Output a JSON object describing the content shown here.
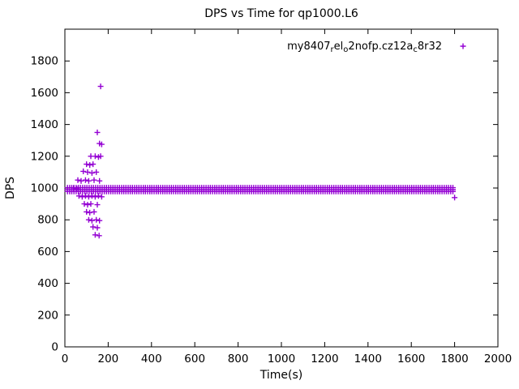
{
  "window": {
    "title": "DPS vs Time for qp1000.L6"
  },
  "chart_data": {
    "type": "scatter",
    "title": "DPS vs Time for qp1000.L6",
    "xlabel": "Time(s)",
    "ylabel": "DPS",
    "xlim": [
      0,
      2000
    ],
    "ylim": [
      0,
      2000
    ],
    "xticks": [
      0,
      200,
      400,
      600,
      800,
      1000,
      1200,
      1400,
      1600,
      1800,
      2000
    ],
    "yticks": [
      0,
      200,
      400,
      600,
      800,
      1000,
      1200,
      1400,
      1600,
      1800
    ],
    "grid": false,
    "marker": "plus",
    "color": "#9400D3",
    "legend": {
      "label": "my8407_rel_o2nofp.cz12a_c8r32",
      "parts": [
        {
          "t": "my8407",
          "sub": false
        },
        {
          "t": "r",
          "sub": true
        },
        {
          "t": "el",
          "sub": false
        },
        {
          "t": "o",
          "sub": true
        },
        {
          "t": "2nofp.cz12a",
          "sub": false
        },
        {
          "t": "c",
          "sub": true
        },
        {
          "t": "8r32",
          "sub": false
        }
      ],
      "position": "top-right"
    },
    "band": {
      "comment": "dense horizontal band of samples at steady-state DPS",
      "x_start": 12,
      "x_end": 1800,
      "step": 10,
      "rows": [
        978,
        990,
        1002
      ]
    },
    "points": [
      [
        165,
        1640
      ],
      [
        150,
        1350
      ],
      [
        160,
        1280
      ],
      [
        170,
        1275
      ],
      [
        120,
        1200
      ],
      [
        140,
        1200
      ],
      [
        155,
        1195
      ],
      [
        165,
        1200
      ],
      [
        100,
        1150
      ],
      [
        115,
        1145
      ],
      [
        130,
        1150
      ],
      [
        85,
        1105
      ],
      [
        105,
        1100
      ],
      [
        125,
        1095
      ],
      [
        145,
        1100
      ],
      [
        60,
        1050
      ],
      [
        75,
        1045
      ],
      [
        95,
        1050
      ],
      [
        110,
        1045
      ],
      [
        135,
        1050
      ],
      [
        160,
        1045
      ],
      [
        40,
        1000
      ],
      [
        55,
        995
      ],
      [
        65,
        950
      ],
      [
        80,
        945
      ],
      [
        95,
        950
      ],
      [
        110,
        945
      ],
      [
        125,
        950
      ],
      [
        140,
        945
      ],
      [
        155,
        950
      ],
      [
        170,
        945
      ],
      [
        90,
        900
      ],
      [
        105,
        895
      ],
      [
        120,
        900
      ],
      [
        150,
        895
      ],
      [
        100,
        850
      ],
      [
        115,
        845
      ],
      [
        135,
        850
      ],
      [
        110,
        800
      ],
      [
        125,
        795
      ],
      [
        145,
        800
      ],
      [
        160,
        795
      ],
      [
        130,
        755
      ],
      [
        150,
        750
      ],
      [
        140,
        705
      ],
      [
        158,
        700
      ],
      [
        1800,
        940
      ]
    ]
  }
}
